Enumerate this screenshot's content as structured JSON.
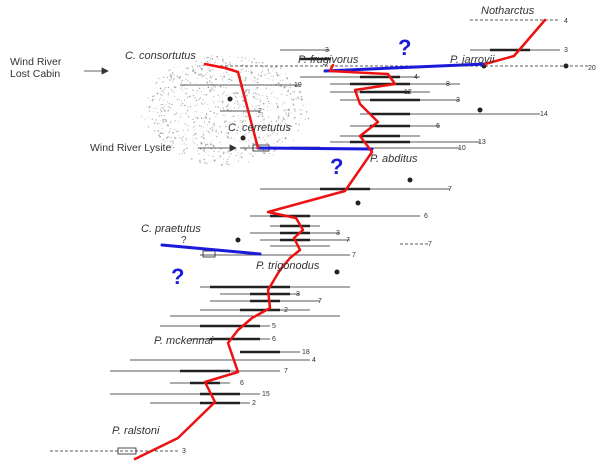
{
  "taxa": {
    "notharctus": "Notharctus",
    "consortutus": "C. consortutus",
    "frugivorus": "P. frugivorus",
    "jarrovii": "P. jarrovii",
    "cerretutus": "C. cerretutus",
    "abditus": "P. abditus",
    "praetutus": "C. praetutus",
    "trigonodus": "P. trigonodus",
    "mckennai": "P. mckennai",
    "ralstoni": "P. ralstoni"
  },
  "localities": {
    "wind_river_lost_cabin": [
      "Wind River",
      "Lost Cabin"
    ],
    "wind_river_lysite": "Wind River Lysite"
  },
  "question_marks": [
    {
      "symbol": "?",
      "style": "large"
    },
    {
      "symbol": "?",
      "style": "large"
    },
    {
      "symbol": "?",
      "style": "large"
    },
    {
      "symbol": "?",
      "style": "small"
    }
  ],
  "sample_counts": [
    "4",
    "3",
    "20",
    "3",
    "19",
    "4",
    "8",
    "12",
    "3",
    "14",
    "2",
    "6",
    "13",
    "10",
    "7",
    "6",
    "3",
    "7",
    "7",
    "7",
    "3",
    "7",
    "2",
    "5",
    "6",
    "18",
    "4",
    "7",
    "6",
    "15",
    "2",
    "3"
  ],
  "colors": {
    "lineage_main": "#ee1111",
    "lineage_side": "#1a1adb",
    "range_bar": "#222222",
    "stipple": "#8a8a8a"
  }
}
